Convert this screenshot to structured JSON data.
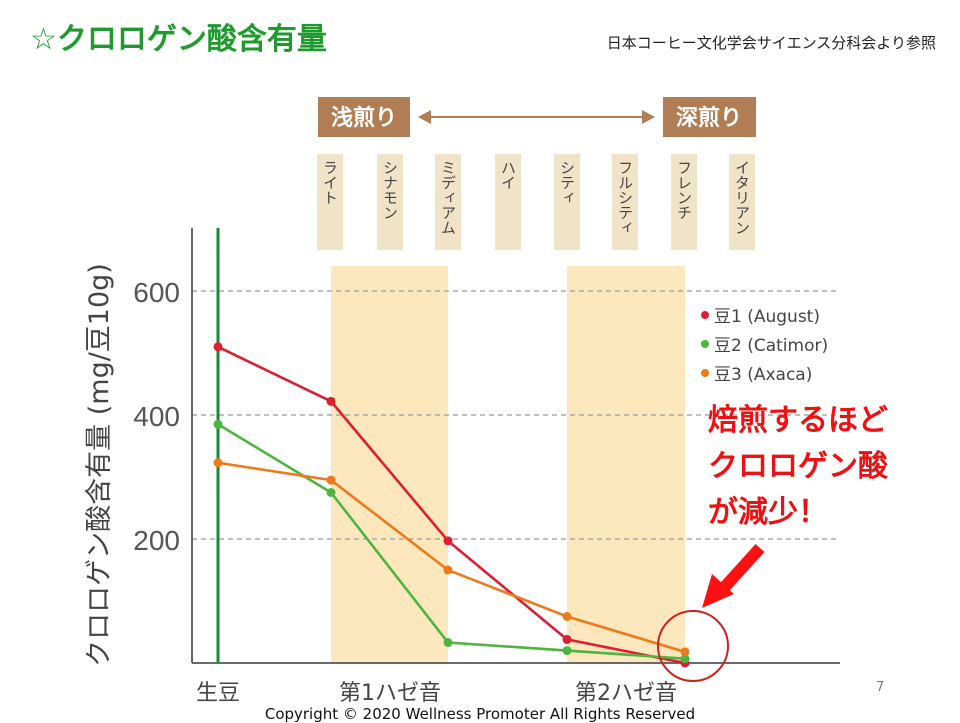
{
  "slide": {
    "title": "☆クロロゲン酸含有量",
    "source": "日本コーヒー文化学会サイエンス分科会より参照",
    "page_number": "7",
    "copyright": "Copyright © 2020   Wellness Promoter   All Rights Reserved",
    "callout": [
      "焙煎するほど",
      "クロロゲン酸",
      "が減少！"
    ]
  },
  "roast": {
    "light_label": "浅煎り",
    "dark_label": "深煎り",
    "levels": [
      "ライト",
      "シナモン",
      "ミディアム",
      "ハイ",
      "シティ",
      "フルシティ",
      "フレンチ",
      "イタリアン"
    ]
  },
  "colors": {
    "title": "#1f9a2c",
    "callout": "#ee1111",
    "roast_box": "#b07d54",
    "level_box": "#f1e3c8",
    "band": "#fde8bd",
    "green_bean_line": "#1a8a3a"
  },
  "chart_data": {
    "type": "line",
    "ylabel": "クロロゲン酸含有量 (mg/豆10g)",
    "xlabel": "",
    "ylim": [
      0,
      700
    ],
    "yticks": [
      200,
      400,
      600
    ],
    "grid": "dashed horizontal at ticks",
    "legend_position": "right",
    "categories": [
      "生豆",
      "第1ハゼ音",
      "第2ハゼ音"
    ],
    "x": [
      0,
      1,
      2,
      3,
      4,
      5
    ],
    "series": [
      {
        "name": "豆1 (August)",
        "color": "#dd1f33",
        "values": [
          510,
          422,
          197,
          38,
          0
        ],
        "x": [
          0,
          1,
          2,
          3,
          4
        ]
      },
      {
        "name": "豆2 (Catimor)",
        "color": "#4db540",
        "values": [
          385,
          275,
          33,
          20,
          7
        ],
        "x": [
          0,
          1,
          2,
          3,
          4
        ]
      },
      {
        "name": "豆3 (Axaca)",
        "color": "#ee7a1a",
        "values": [
          323,
          295,
          150,
          75,
          18
        ],
        "x": [
          0,
          1,
          2,
          3,
          4
        ]
      }
    ],
    "highlight_bands": [
      "第1ハゼ音",
      "第2ハゼ音"
    ],
    "annotation": "circle and arrow at final roast values"
  }
}
